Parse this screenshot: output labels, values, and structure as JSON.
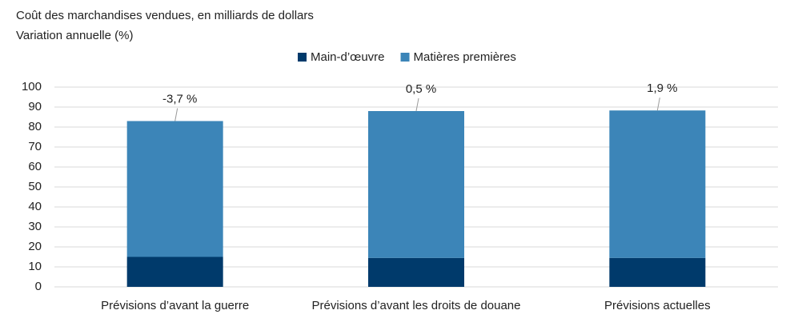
{
  "chart_data": {
    "type": "stacked-bar",
    "title": "Coût des marchandises vendues, en milliards de dollars",
    "subtitle": "Variation annuelle (%)",
    "categories": [
      "Prévisions d’avant la guerre",
      "Prévisions d’avant les droits de douane",
      "Prévisions actuelles"
    ],
    "series": [
      {
        "name": "Main-d’œuvre",
        "color": "#003a6b",
        "values": [
          15,
          14.5,
          14.5
        ]
      },
      {
        "name": "Matières premières",
        "color": "#3c85b8",
        "values": [
          68,
          73.5,
          73.8
        ]
      }
    ],
    "annotations": [
      "-3,7 %",
      "0,5 %",
      "1,9 %"
    ],
    "ylim": [
      0,
      100
    ],
    "yticks": [
      0,
      10,
      20,
      30,
      40,
      50,
      60,
      70,
      80,
      90,
      100
    ],
    "grid": true,
    "legend": "top"
  }
}
